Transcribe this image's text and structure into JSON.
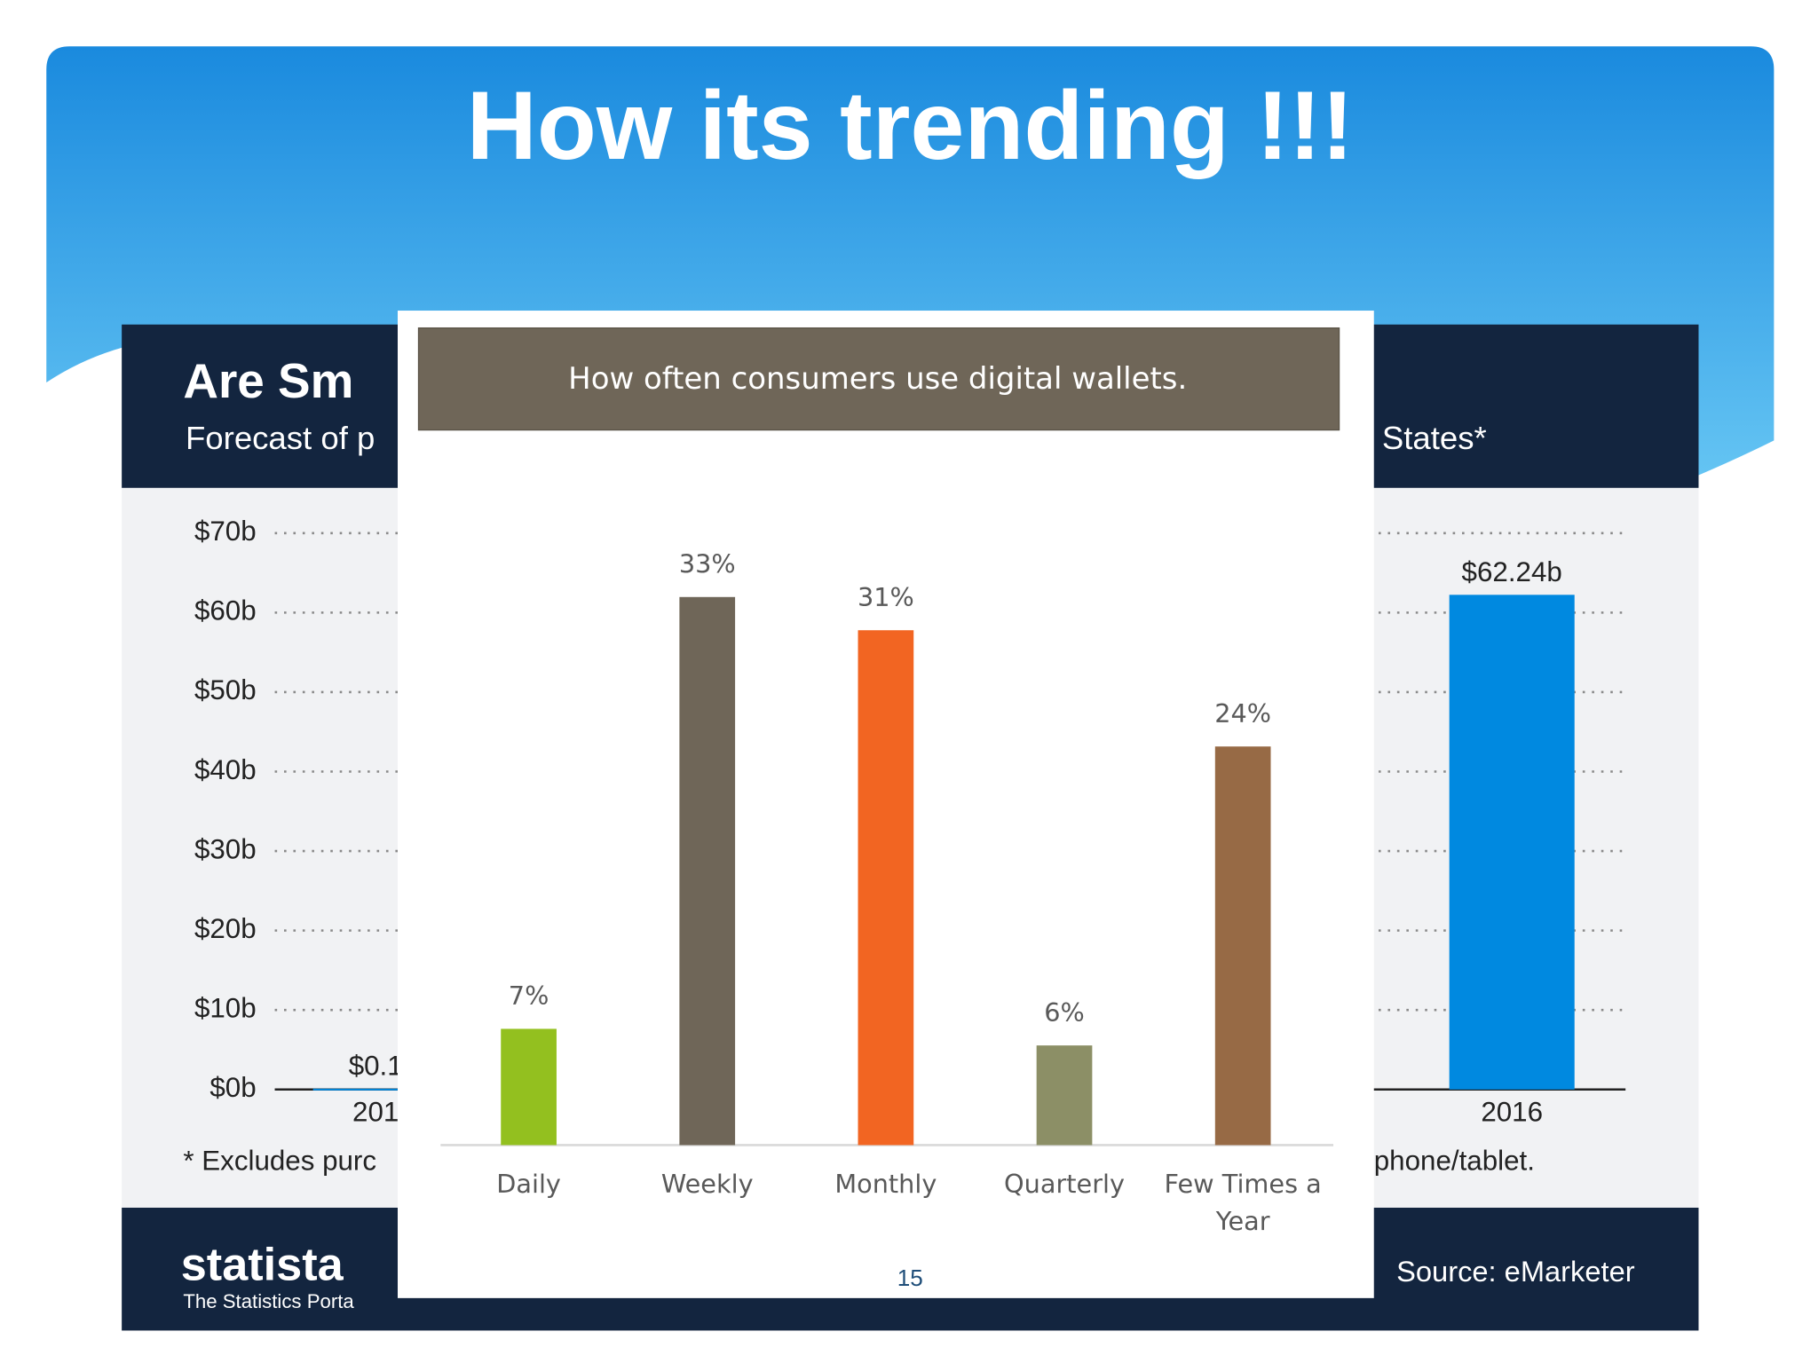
{
  "slide": {
    "title": "How its trending !!!",
    "page_number": "15"
  },
  "chart_data": [
    {
      "type": "bar",
      "title": "Are Sm",
      "subtitle": "Forecast of p",
      "subtitle_end": "States*",
      "categories": [
        "201",
        "2016"
      ],
      "values": [
        0.1,
        62.24
      ],
      "value_labels": [
        "$0.1",
        "$62.24b"
      ],
      "color": "#0089e0",
      "ylim": [
        0,
        70
      ],
      "yticks": [
        {
          "value": 0,
          "label": "$0b"
        },
        {
          "value": 10,
          "label": "$10b"
        },
        {
          "value": 20,
          "label": "$20b"
        },
        {
          "value": 30,
          "label": "$30b"
        },
        {
          "value": 40,
          "label": "$40b"
        },
        {
          "value": 50,
          "label": "$50b"
        },
        {
          "value": 60,
          "label": "$60b"
        },
        {
          "value": 70,
          "label": "$70b"
        }
      ],
      "grid": true,
      "footnote": "* Excludes purc",
      "footnote_end": "phone/tablet.",
      "brand": "statista",
      "brand_tagline": "The Statistics Porta",
      "source": "Source: eMarketer"
    },
    {
      "type": "bar",
      "title": "How often consumers use digital wallets.",
      "categories": [
        "Daily",
        "Weekly",
        "Monthly",
        "Quarterly",
        "Few Times a Year"
      ],
      "values": [
        7,
        33,
        31,
        6,
        24
      ],
      "value_labels": [
        "7%",
        "33%",
        "31%",
        "6%",
        "24%"
      ],
      "colors": [
        "#93c01f",
        "#6f6658",
        "#f26522",
        "#8c8f66",
        "#976a45"
      ]
    }
  ]
}
